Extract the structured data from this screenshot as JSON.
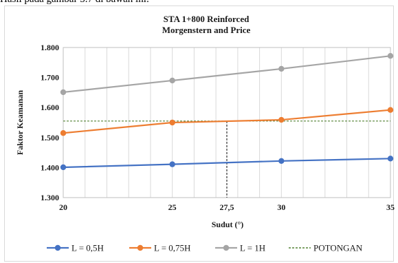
{
  "page": {
    "top_caption": "Hasil pada gambar 5.7 di bawah ini:"
  },
  "chart_data": {
    "type": "line",
    "title_lines": [
      "STA 1+800 Reinforced",
      "Morgenstern and Price"
    ],
    "xlabel": "Sudut (°)",
    "ylabel": "Faktor Keamanan",
    "x_ticks": [
      "20",
      "25",
      "27,5",
      "30",
      "35"
    ],
    "x_tick_values": [
      20,
      25,
      27.5,
      30,
      35
    ],
    "y_ticks": [
      "1.300",
      "1.400",
      "1.500",
      "1.600",
      "1.700",
      "1.800"
    ],
    "y_tick_values": [
      1.3,
      1.4,
      1.5,
      1.6,
      1.7,
      1.8
    ],
    "xlim": [
      20,
      35
    ],
    "ylim": [
      1.3,
      1.8
    ],
    "grid": "vertical",
    "legend_position": "bottom",
    "x": [
      20,
      25,
      30,
      35
    ],
    "series": [
      {
        "name": "L = 0,5H",
        "color": "#4472c4",
        "values": [
          1.401,
          1.411,
          1.422,
          1.43
        ]
      },
      {
        "name": "L = 0,75H",
        "color": "#ed7d31",
        "values": [
          1.515,
          1.55,
          1.559,
          1.592
        ]
      },
      {
        "name": "L = 1H",
        "color": "#a5a5a5",
        "values": [
          1.651,
          1.69,
          1.729,
          1.772
        ]
      }
    ],
    "reference_line": {
      "name": "POTONGAN",
      "color": "#548235",
      "y": 1.555,
      "x": 27.5
    }
  }
}
